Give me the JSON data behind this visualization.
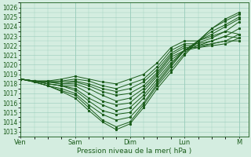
{
  "xlabel": "Pression niveau de la mer( hPa )",
  "ylim": [
    1012.5,
    1026.5
  ],
  "yticks": [
    1013,
    1014,
    1015,
    1016,
    1017,
    1018,
    1019,
    1020,
    1021,
    1022,
    1023,
    1024,
    1025,
    1026
  ],
  "xtick_labels": [
    "Ven",
    "Sam",
    "Dim",
    "Lun",
    "M"
  ],
  "xtick_positions": [
    0,
    24,
    48,
    72,
    96
  ],
  "xlim": [
    0,
    100
  ],
  "background_color": "#d4ede0",
  "grid_color": "#99ccbb",
  "line_color": "#1a5c1a",
  "figsize": [
    3.2,
    2.0
  ],
  "dpi": 100,
  "lines": [
    [
      0,
      1018.5,
      6,
      1018.2,
      12,
      1017.8,
      18,
      1017.2,
      24,
      1016.5,
      30,
      1015.2,
      36,
      1014.0,
      42,
      1013.2,
      48,
      1013.8,
      54,
      1015.5,
      60,
      1017.5,
      66,
      1019.2,
      72,
      1021.0,
      78,
      1022.5,
      84,
      1023.8,
      90,
      1024.8,
      96,
      1025.5
    ],
    [
      0,
      1018.5,
      6,
      1018.2,
      12,
      1017.8,
      18,
      1017.3,
      24,
      1016.8,
      30,
      1015.5,
      36,
      1014.2,
      42,
      1013.5,
      48,
      1014.0,
      54,
      1015.8,
      60,
      1017.8,
      66,
      1019.5,
      72,
      1021.2,
      78,
      1022.5,
      84,
      1023.8,
      90,
      1024.6,
      96,
      1025.3
    ],
    [
      0,
      1018.5,
      6,
      1018.2,
      12,
      1017.8,
      18,
      1017.5,
      24,
      1017.0,
      30,
      1015.8,
      36,
      1014.8,
      42,
      1014.2,
      48,
      1014.5,
      54,
      1016.0,
      60,
      1018.0,
      66,
      1019.8,
      72,
      1021.5,
      78,
      1022.5,
      84,
      1023.5,
      90,
      1024.2,
      96,
      1025.0
    ],
    [
      0,
      1018.5,
      6,
      1018.3,
      12,
      1018.0,
      18,
      1017.8,
      24,
      1017.3,
      30,
      1016.2,
      36,
      1015.2,
      42,
      1014.8,
      48,
      1015.0,
      54,
      1016.5,
      60,
      1018.2,
      66,
      1020.0,
      72,
      1021.5,
      78,
      1022.5,
      84,
      1023.2,
      90,
      1024.0,
      96,
      1024.8
    ],
    [
      0,
      1018.5,
      6,
      1018.3,
      12,
      1018.0,
      18,
      1017.8,
      24,
      1017.5,
      30,
      1016.5,
      36,
      1015.8,
      42,
      1015.2,
      48,
      1015.5,
      54,
      1016.8,
      60,
      1018.5,
      66,
      1020.2,
      72,
      1021.5,
      78,
      1022.3,
      84,
      1022.8,
      90,
      1023.5,
      96,
      1024.5
    ],
    [
      0,
      1018.5,
      6,
      1018.3,
      12,
      1018.0,
      18,
      1017.8,
      24,
      1017.8,
      30,
      1017.0,
      36,
      1016.2,
      42,
      1015.8,
      48,
      1016.0,
      54,
      1017.2,
      60,
      1018.8,
      66,
      1020.5,
      72,
      1021.5,
      78,
      1022.0,
      84,
      1022.5,
      90,
      1023.0,
      96,
      1023.8
    ],
    [
      0,
      1018.5,
      6,
      1018.3,
      12,
      1018.2,
      18,
      1018.0,
      24,
      1018.0,
      30,
      1017.5,
      36,
      1016.8,
      42,
      1016.2,
      48,
      1016.5,
      54,
      1017.5,
      60,
      1019.0,
      66,
      1020.8,
      72,
      1021.5,
      78,
      1021.8,
      84,
      1022.2,
      90,
      1022.5,
      96,
      1023.2
    ],
    [
      0,
      1018.5,
      6,
      1018.3,
      12,
      1018.2,
      18,
      1018.0,
      24,
      1018.2,
      30,
      1017.8,
      36,
      1017.2,
      42,
      1016.8,
      48,
      1017.0,
      54,
      1017.8,
      60,
      1019.2,
      66,
      1021.0,
      72,
      1021.8,
      78,
      1021.8,
      84,
      1022.0,
      90,
      1022.2,
      96,
      1022.8
    ],
    [
      0,
      1018.5,
      6,
      1018.3,
      12,
      1018.2,
      18,
      1018.2,
      24,
      1018.3,
      30,
      1018.0,
      36,
      1017.5,
      42,
      1017.2,
      48,
      1017.5,
      54,
      1018.2,
      60,
      1019.5,
      66,
      1021.2,
      72,
      1022.0,
      78,
      1022.0,
      84,
      1022.2,
      90,
      1022.5,
      96,
      1022.5
    ],
    [
      0,
      1018.5,
      6,
      1018.3,
      12,
      1018.3,
      18,
      1018.3,
      24,
      1018.5,
      30,
      1018.3,
      36,
      1017.8,
      42,
      1017.5,
      48,
      1018.0,
      54,
      1018.5,
      60,
      1019.8,
      66,
      1021.5,
      72,
      1022.2,
      78,
      1022.2,
      84,
      1022.5,
      90,
      1023.0,
      96,
      1022.8
    ],
    [
      0,
      1018.5,
      6,
      1018.3,
      12,
      1018.3,
      18,
      1018.5,
      24,
      1018.8,
      30,
      1018.5,
      36,
      1018.2,
      42,
      1018.0,
      48,
      1018.5,
      54,
      1019.0,
      60,
      1020.2,
      66,
      1021.8,
      72,
      1022.5,
      78,
      1022.5,
      84,
      1023.0,
      90,
      1023.5,
      96,
      1023.2
    ]
  ]
}
